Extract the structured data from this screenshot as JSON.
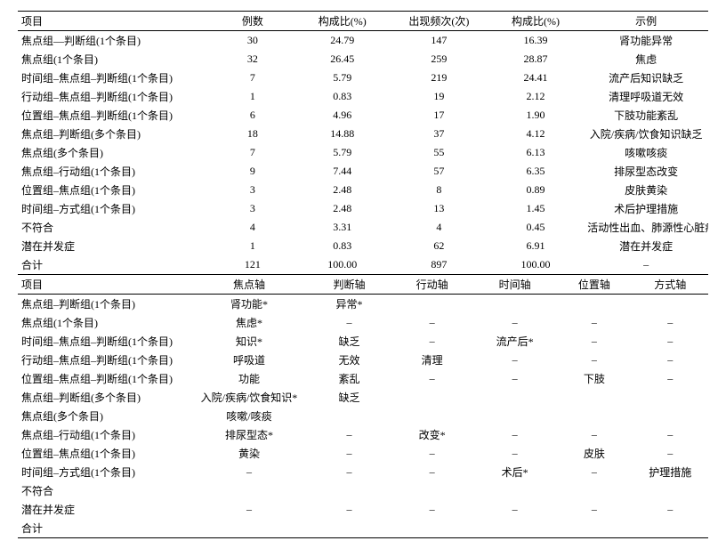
{
  "table1": {
    "headers": [
      "项目",
      "例数",
      "构成比(%)",
      "出现频次(次)",
      "构成比(%)",
      "示例"
    ],
    "rows": [
      [
        "焦点组—判断组(1个条目)",
        "30",
        "24.79",
        "147",
        "16.39",
        "肾功能异常"
      ],
      [
        "焦点组(1个条目)",
        "32",
        "26.45",
        "259",
        "28.87",
        "焦虑"
      ],
      [
        "时间组–焦点组–判断组(1个条目)",
        "7",
        "5.79",
        "219",
        "24.41",
        "流产后知识缺乏"
      ],
      [
        "行动组–焦点组–判断组(1个条目)",
        "1",
        "0.83",
        "19",
        "2.12",
        "清理呼吸道无效"
      ],
      [
        "位置组–焦点组–判断组(1个条目)",
        "6",
        "4.96",
        "17",
        "1.90",
        "下肢功能紊乱"
      ],
      [
        "焦点组–判断组(多个条目)",
        "18",
        "14.88",
        "37",
        "4.12",
        "入院/疾病/饮食知识缺乏"
      ],
      [
        "焦点组(多个条目)",
        "7",
        "5.79",
        "55",
        "6.13",
        "咳嗽咳痰"
      ],
      [
        "焦点组–行动组(1个条目)",
        "9",
        "7.44",
        "57",
        "6.35",
        "排尿型态改变"
      ],
      [
        "位置组–焦点组(1个条目)",
        "3",
        "2.48",
        "8",
        "0.89",
        "皮肤黄染"
      ],
      [
        "时间组–方式组(1个条目)",
        "3",
        "2.48",
        "13",
        "1.45",
        "术后护理措施"
      ],
      [
        "不符合",
        "4",
        "3.31",
        "4",
        "0.45",
        "活动性出血、肺源性心脏病"
      ],
      [
        "潜在并发症",
        "1",
        "0.83",
        "62",
        "6.91",
        "潜在并发症"
      ],
      [
        "合计",
        "121",
        "100.00",
        "897",
        "100.00",
        "–"
      ]
    ]
  },
  "table2": {
    "headers": [
      "项目",
      "焦点轴",
      "判断轴",
      "行动轴",
      "时间轴",
      "位置轴",
      "方式轴"
    ],
    "rows": [
      [
        "焦点组–判断组(1个条目)",
        "肾功能*",
        "异常*",
        "",
        "",
        "",
        ""
      ],
      [
        "焦点组(1个条目)",
        "焦虑*",
        "–",
        "–",
        "–",
        "–",
        "–"
      ],
      [
        "时间组–焦点组–判断组(1个条目)",
        "知识*",
        "缺乏",
        "–",
        "流产后*",
        "–",
        "–"
      ],
      [
        "行动组–焦点组–判断组(1个条目)",
        "呼吸道",
        "无效",
        "清理",
        "–",
        "–",
        "–"
      ],
      [
        "位置组–焦点组–判断组(1个条目)",
        "功能",
        "紊乱",
        "–",
        "–",
        "下肢",
        "–"
      ],
      [
        "焦点组–判断组(多个条目)",
        "入院/疾病/饮食知识*",
        "缺乏",
        "",
        "",
        "",
        ""
      ],
      [
        "焦点组(多个条目)",
        "咳嗽/咳痰",
        "",
        "",
        "",
        "",
        ""
      ],
      [
        "焦点组–行动组(1个条目)",
        "排尿型态*",
        "–",
        "改变*",
        "–",
        "–",
        "–"
      ],
      [
        "位置组–焦点组(1个条目)",
        "黄染",
        "–",
        "–",
        "–",
        "皮肤",
        "–"
      ],
      [
        "时间组–方式组(1个条目)",
        "–",
        "–",
        "–",
        "术后*",
        "–",
        "护理措施"
      ],
      [
        "不符合",
        "",
        "",
        "",
        "",
        "",
        ""
      ],
      [
        "潜在并发症",
        "–",
        "–",
        "–",
        "–",
        "–",
        "–"
      ],
      [
        "合计",
        "",
        "",
        "",
        "",
        "",
        ""
      ]
    ]
  }
}
